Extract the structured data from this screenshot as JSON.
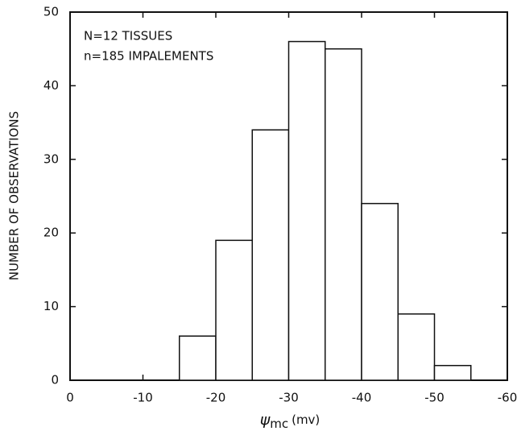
{
  "chart_data": {
    "type": "histogram",
    "ylabel": "NUMBER OF OBSERVATIONS",
    "xlabel": {
      "symbol": "ψ",
      "subscript": "mc",
      "unit": "(mv)"
    },
    "annotations": [
      "N=12  TISSUES",
      "n=185 IMPALEMENTS"
    ],
    "bins": [
      -15,
      -20,
      -25,
      -30,
      -35,
      -40,
      -45,
      -50,
      -55
    ],
    "values": [
      6,
      19,
      34,
      46,
      45,
      24,
      9,
      2
    ],
    "color": "#ffffff",
    "xlim": [
      0,
      -60
    ],
    "xticks": [
      0,
      -10,
      -20,
      -30,
      -40,
      -50,
      -60
    ],
    "ylim": [
      0,
      50
    ],
    "yticks": [
      0,
      10,
      20,
      30,
      40,
      50
    ],
    "grid": false
  }
}
